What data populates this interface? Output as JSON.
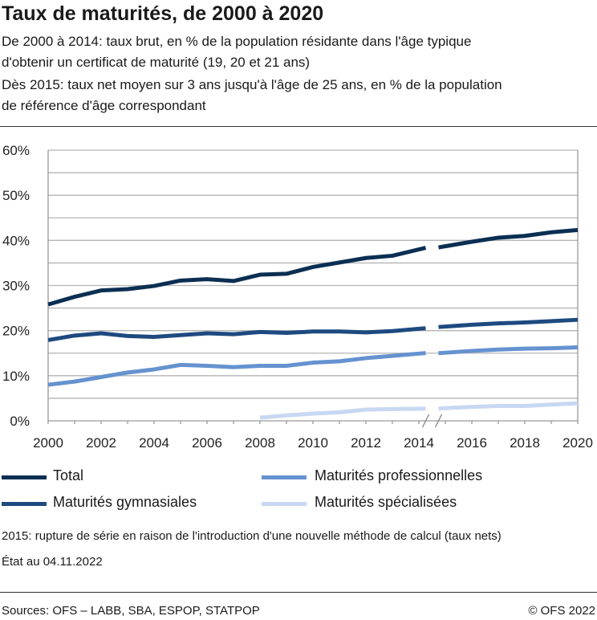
{
  "title": "Taux de maturités, de 2000 à 2020",
  "subtitle": [
    "De 2000 à 2014: taux brut, en % de la population résidante dans l'âge typique",
    "d'obtenir un certificat de maturité (19, 20 et 21 ans)",
    "Dès 2015: taux net moyen sur 3 ans jusqu'à l'âge de 25 ans, en % de la population",
    "de référence d'âge correspondant"
  ],
  "chart_data": {
    "type": "line",
    "x": [
      2000,
      2001,
      2002,
      2003,
      2004,
      2005,
      2006,
      2007,
      2008,
      2009,
      2010,
      2011,
      2012,
      2013,
      2014,
      2015,
      2016,
      2017,
      2018,
      2019,
      2020
    ],
    "xticks": [
      "2000",
      "2002",
      "2004",
      "2006",
      "2008",
      "2010",
      "2012",
      "2014",
      "2016",
      "2018",
      "2020"
    ],
    "yticks": [
      "0%",
      "10%",
      "20%",
      "30%",
      "40%",
      "50%",
      "60%"
    ],
    "ylim": [
      0,
      60
    ],
    "xlim": [
      2000,
      2020
    ],
    "grid": "horizontal, every 5%",
    "series_break_between": [
      2014,
      2015
    ],
    "legend_position": "bottom",
    "series": [
      {
        "name": "Total",
        "color": "#0b2f52",
        "values": [
          25.8,
          27.5,
          28.9,
          29.2,
          29.9,
          31.1,
          31.4,
          31.0,
          32.4,
          32.6,
          34.1,
          35.1,
          36.1,
          36.6,
          38.0,
          38.7,
          39.7,
          40.6,
          41.0,
          41.8,
          42.3
        ]
      },
      {
        "name": "Maturités gymnasiales",
        "color": "#1d4a80",
        "values": [
          17.9,
          18.9,
          19.4,
          18.8,
          18.6,
          19.0,
          19.4,
          19.2,
          19.7,
          19.5,
          19.8,
          19.8,
          19.6,
          19.9,
          20.4,
          20.9,
          21.3,
          21.6,
          21.8,
          22.1,
          22.4
        ]
      },
      {
        "name": "Maturités professionnelles",
        "color": "#6592d0",
        "values": [
          8.0,
          8.7,
          9.7,
          10.7,
          11.4,
          12.4,
          12.2,
          11.9,
          12.2,
          12.2,
          12.9,
          13.2,
          13.9,
          14.4,
          14.9,
          15.1,
          15.5,
          15.8,
          16.0,
          16.1,
          16.3
        ]
      },
      {
        "name": "Maturités spécialisées",
        "color": "#c8d8f2",
        "values": [
          null,
          null,
          null,
          null,
          null,
          null,
          null,
          null,
          0.7,
          1.2,
          1.6,
          1.9,
          2.5,
          2.6,
          2.7,
          2.8,
          3.1,
          3.3,
          3.3,
          3.6,
          3.9
        ]
      }
    ]
  },
  "notes": [
    "2015: rupture de série en raison de l'introduction d'une nouvelle méthode de calcul (taux nets)",
    "État au 04.11.2022"
  ],
  "sources": "Sources: OFS – LABB, SBA, ESPOP, STATPOP",
  "copyright": "© OFS 2022"
}
